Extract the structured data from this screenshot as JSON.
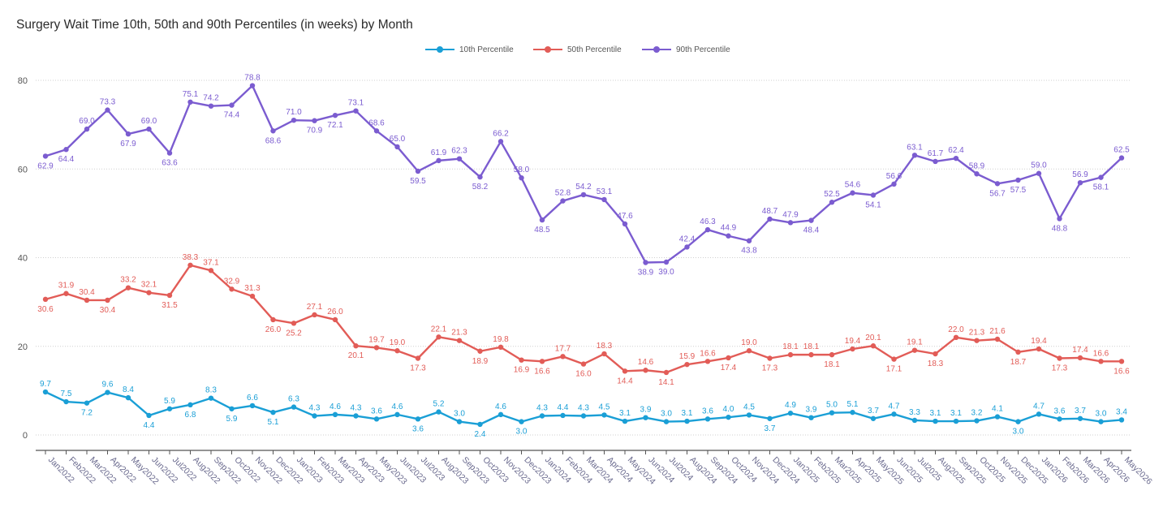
{
  "chart_data": {
    "type": "line",
    "title": "Surgery Wait Time 10th, 50th and 90th Percentiles (in weeks) by Month",
    "xlabel": "",
    "ylabel": "",
    "ylim": [
      0,
      80
    ],
    "yticks": [
      0,
      20,
      40,
      60,
      80
    ],
    "grid": true,
    "legend_position": "top-center",
    "categories": [
      "Jan2022",
      "Feb2022",
      "Mar2022",
      "Apr2022",
      "May2022",
      "Jun2022",
      "Jul2022",
      "Aug2022",
      "Sep2022",
      "Oct2022",
      "Nov2022",
      "Dec2022",
      "Jan2023",
      "Feb2023",
      "Mar2023",
      "Apr2023",
      "May2023",
      "Jun2023",
      "Jul2023",
      "Aug2023",
      "Sep2023",
      "Oct2023",
      "Nov2023",
      "Dec2023",
      "Jan2024",
      "Feb2024",
      "Mar2024",
      "Apr2024",
      "May2024",
      "Jun2024",
      "Jul2024",
      "Aug2024",
      "Sep2024",
      "Oct2024",
      "Nov2024",
      "Dec2024",
      "Jan2025",
      "Feb2025",
      "Mar2025",
      "Apr2025",
      "May2025",
      "Jun2025",
      "Jul2025",
      "Aug2025",
      "Sep2025",
      "Oct2025",
      "Nov2025",
      "Dec2025",
      "Jan2026",
      "Feb2026",
      "Mar2026",
      "Apr2026",
      "May2026"
    ],
    "series": [
      {
        "name": "10th Percentile",
        "color": "#1a9fd6",
        "values": [
          9.7,
          7.5,
          7.2,
          9.6,
          8.4,
          4.4,
          5.9,
          6.8,
          8.3,
          5.9,
          6.6,
          5.1,
          6.3,
          4.3,
          4.6,
          4.3,
          3.6,
          4.6,
          3.6,
          5.2,
          3.0,
          2.4,
          4.6,
          3.0,
          4.3,
          4.4,
          4.3,
          4.5,
          3.1,
          3.9,
          3.0,
          3.1,
          3.6,
          4.0,
          4.5,
          3.7,
          4.9,
          3.9,
          5.0,
          5.1,
          3.7,
          4.7,
          3.3,
          3.1,
          3.1,
          3.2,
          4.1,
          3.0,
          4.7,
          3.6,
          3.7,
          3.0,
          3.4
        ],
        "label_positions": [
          "a",
          "a",
          "b",
          "a",
          "a",
          "b",
          "a",
          "b",
          "a",
          "b",
          "a",
          "b",
          "a",
          "a",
          "a",
          "a",
          "a",
          "a",
          "b",
          "a",
          "a",
          "b",
          "a",
          "b",
          "a",
          "a",
          "a",
          "a",
          "a",
          "a",
          "a",
          "a",
          "a",
          "a",
          "a",
          "b",
          "a",
          "a",
          "a",
          "a",
          "a",
          "a",
          "a",
          "a",
          "a",
          "a",
          "a",
          "b",
          "a",
          "a",
          "a",
          "a",
          "a"
        ]
      },
      {
        "name": "50th Percentile",
        "color": "#e25c57",
        "values": [
          30.6,
          31.9,
          30.4,
          30.4,
          33.2,
          32.1,
          31.5,
          38.3,
          37.1,
          32.9,
          31.3,
          26.0,
          25.2,
          27.1,
          26.0,
          20.1,
          19.7,
          19.0,
          17.3,
          22.1,
          21.3,
          18.9,
          19.8,
          16.9,
          16.6,
          17.7,
          16.0,
          18.3,
          14.4,
          14.6,
          14.1,
          15.9,
          16.6,
          17.4,
          19.0,
          17.3,
          18.1,
          18.1,
          18.1,
          19.4,
          20.1,
          17.1,
          19.1,
          18.3,
          22.0,
          21.3,
          21.6,
          18.7,
          19.4,
          17.3,
          17.4,
          16.6,
          16.6
        ],
        "label_positions": [
          "b",
          "a",
          "a",
          "b",
          "a",
          "a",
          "b",
          "a",
          "a",
          "a",
          "a",
          "b",
          "b",
          "a",
          "a",
          "b",
          "a",
          "a",
          "b",
          "a",
          "a",
          "b",
          "a",
          "b",
          "b",
          "a",
          "b",
          "a",
          "b",
          "a",
          "b",
          "a",
          "a",
          "b",
          "a",
          "b",
          "a",
          "a",
          "b",
          "a",
          "a",
          "b",
          "a",
          "b",
          "a",
          "a",
          "a",
          "b",
          "a",
          "b",
          "a",
          "a",
          "b"
        ]
      },
      {
        "name": "90th Percentile",
        "color": "#7b5cd0",
        "values": [
          62.9,
          64.4,
          69.0,
          73.3,
          67.9,
          69.0,
          63.6,
          75.1,
          74.2,
          74.4,
          78.8,
          68.6,
          71.0,
          70.9,
          72.1,
          73.1,
          68.6,
          65.0,
          59.5,
          61.9,
          62.3,
          58.2,
          66.2,
          58.0,
          48.5,
          52.8,
          54.2,
          53.1,
          47.6,
          38.9,
          39.0,
          42.4,
          46.3,
          44.9,
          43.8,
          48.7,
          47.9,
          48.4,
          52.5,
          54.6,
          54.1,
          56.6,
          63.1,
          61.7,
          62.4,
          58.9,
          56.7,
          57.5,
          59.0,
          48.8,
          56.9,
          58.1,
          62.5
        ],
        "label_positions": [
          "b",
          "b",
          "a",
          "a",
          "b",
          "a",
          "b",
          "a",
          "a",
          "b",
          "a",
          "b",
          "a",
          "b",
          "b",
          "a",
          "a",
          "a",
          "b",
          "a",
          "a",
          "b",
          "a",
          "a",
          "b",
          "a",
          "a",
          "a",
          "a",
          "b",
          "b",
          "a",
          "a",
          "a",
          "b",
          "a",
          "a",
          "b",
          "a",
          "a",
          "b",
          "a",
          "a",
          "a",
          "a",
          "a",
          "b",
          "b",
          "a",
          "b",
          "a",
          "b",
          "a"
        ]
      }
    ]
  }
}
